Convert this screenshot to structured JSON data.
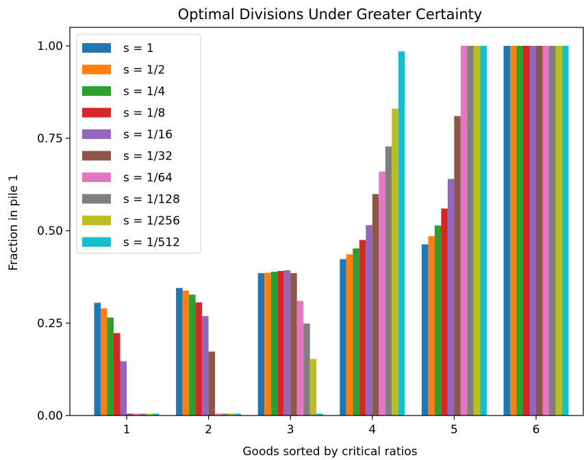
{
  "chart_data": {
    "type": "bar",
    "title": "Optimal Divisions Under Greater Certainty",
    "xlabel": "Goods sorted by critical ratios",
    "ylabel": "Fraction in pile 1",
    "categories": [
      "1",
      "2",
      "3",
      "4",
      "5",
      "6"
    ],
    "ylim": [
      0,
      1.05
    ],
    "yticks": [
      "0.00",
      "0.25",
      "0.50",
      "0.75",
      "1.00"
    ],
    "ytick_values": [
      0,
      0.25,
      0.5,
      0.75,
      1.0
    ],
    "grid": false,
    "legend_position": "top-left",
    "series": [
      {
        "name": "s = 1",
        "color": "#1f77b4",
        "values": [
          0.305,
          0.345,
          0.385,
          0.423,
          0.463,
          1.0
        ]
      },
      {
        "name": "s = 1/2",
        "color": "#ff7f0e",
        "values": [
          0.29,
          0.338,
          0.386,
          0.436,
          0.485,
          1.0
        ]
      },
      {
        "name": "s = 1/4",
        "color": "#2ca02c",
        "values": [
          0.265,
          0.327,
          0.389,
          0.452,
          0.514,
          1.0
        ]
      },
      {
        "name": "s = 1/8",
        "color": "#d62728",
        "values": [
          0.223,
          0.306,
          0.391,
          0.475,
          0.56,
          1.0
        ]
      },
      {
        "name": "s = 1/16",
        "color": "#9467bd",
        "values": [
          0.147,
          0.269,
          0.393,
          0.515,
          0.64,
          1.0
        ]
      },
      {
        "name": "s = 1/32",
        "color": "#8c564b",
        "values": [
          0.005,
          0.173,
          0.385,
          0.599,
          0.81,
          1.0
        ]
      },
      {
        "name": "s = 1/64",
        "color": "#e377c2",
        "values": [
          0.005,
          0.005,
          0.31,
          0.66,
          1.0,
          1.0
        ]
      },
      {
        "name": "s = 1/128",
        "color": "#7f7f7f",
        "values": [
          0.005,
          0.005,
          0.249,
          0.728,
          1.0,
          1.0
        ]
      },
      {
        "name": "s = 1/256",
        "color": "#bcbd22",
        "values": [
          0.005,
          0.005,
          0.153,
          0.83,
          1.0,
          1.0
        ]
      },
      {
        "name": "s = 1/512",
        "color": "#17becf",
        "values": [
          0.005,
          0.005,
          0.005,
          0.985,
          1.0,
          1.0
        ]
      }
    ]
  }
}
